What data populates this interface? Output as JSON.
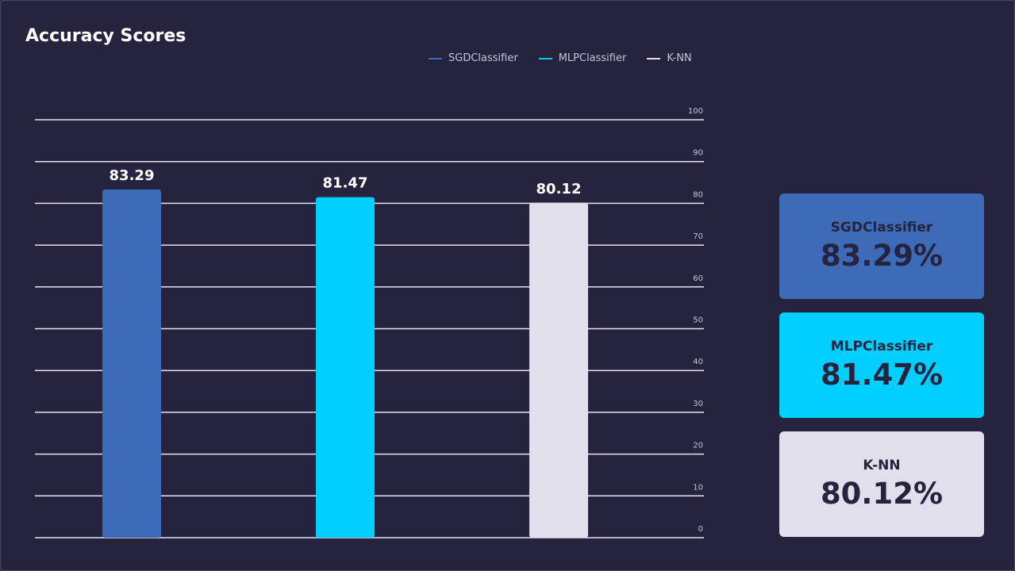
{
  "chart_data": {
    "type": "bar",
    "title": "Accuracy Scores",
    "categories": [
      "SGDClassifier",
      "MLPClassifier",
      "K-NN"
    ],
    "values": [
      83.29,
      81.47,
      80.12
    ],
    "value_labels": [
      "83.29",
      "81.47",
      "80.12"
    ],
    "colors": [
      "#3d6bb8",
      "#00cfff",
      "#e0dfeb"
    ],
    "ylim": [
      0,
      100
    ],
    "yticks": [
      0,
      10,
      20,
      30,
      40,
      50,
      60,
      70,
      80,
      90,
      100
    ],
    "grid": true,
    "y_axis_side": "right",
    "legend_position": "top"
  },
  "legend": [
    {
      "label": "SGDClassifier",
      "color": "#3d6bb8"
    },
    {
      "label": "MLPClassifier",
      "color": "#00cfff"
    },
    {
      "label": "K-NN",
      "color": "#e0dfeb"
    }
  ],
  "cards": [
    {
      "name": "SGDClassifier",
      "value": "83.29%",
      "color": "#3d6bb8"
    },
    {
      "name": "MLPClassifier",
      "value": "81.47%",
      "color": "#00cfff"
    },
    {
      "name": "K-NN",
      "value": "80.12%",
      "color": "#e0dfeb"
    }
  ]
}
